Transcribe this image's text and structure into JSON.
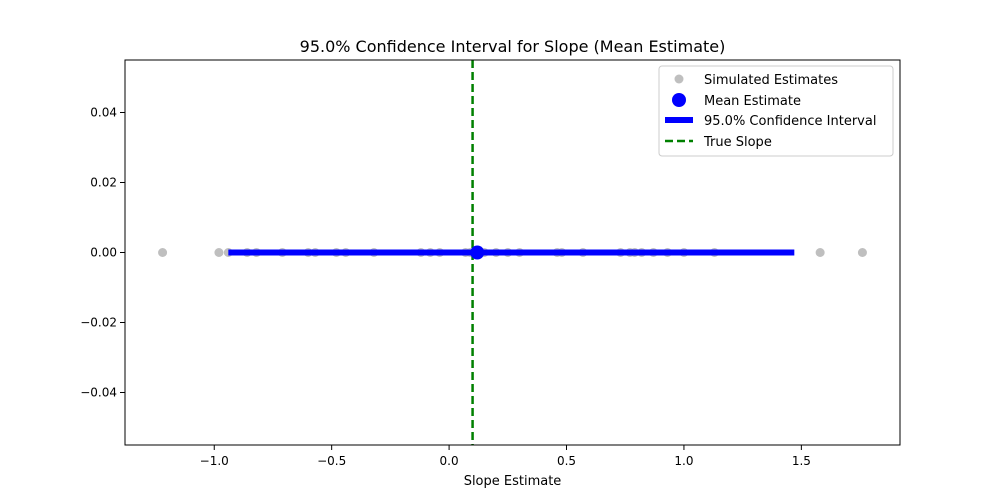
{
  "chart_data": {
    "type": "scatter",
    "title": "95.0% Confidence Interval for Slope (Mean Estimate)",
    "xlabel": "Slope Estimate",
    "ylabel": "",
    "xlim": [
      -1.38,
      1.92
    ],
    "ylim": [
      -0.055,
      0.055
    ],
    "xticks": [
      {
        "value": -1.0,
        "label": "−1.0"
      },
      {
        "value": -0.5,
        "label": "−0.5"
      },
      {
        "value": 0.0,
        "label": "0.0"
      },
      {
        "value": 0.5,
        "label": "0.5"
      },
      {
        "value": 1.0,
        "label": "1.0"
      },
      {
        "value": 1.5,
        "label": "1.5"
      }
    ],
    "yticks": [
      {
        "value": 0.04,
        "label": "0.04"
      },
      {
        "value": 0.02,
        "label": "0.02"
      },
      {
        "value": 0.0,
        "label": "0.00"
      },
      {
        "value": -0.02,
        "label": "−0.02"
      },
      {
        "value": -0.04,
        "label": "−0.04"
      }
    ],
    "grid": false,
    "legend_position": "top-right",
    "series": [
      {
        "name": "Simulated Estimates",
        "kind": "scatter",
        "color": "#aaaaaa",
        "x": [
          -1.22,
          -0.98,
          -0.94,
          -0.86,
          -0.82,
          -0.71,
          -0.6,
          -0.57,
          -0.48,
          -0.44,
          -0.32,
          -0.12,
          -0.08,
          -0.04,
          0.07,
          0.09,
          0.15,
          0.2,
          0.25,
          0.3,
          0.46,
          0.48,
          0.57,
          0.73,
          0.77,
          0.79,
          0.82,
          0.87,
          0.93,
          1.0,
          1.13,
          1.58,
          1.76
        ],
        "y": [
          0,
          0,
          0,
          0,
          0,
          0,
          0,
          0,
          0,
          0,
          0,
          0,
          0,
          0,
          0,
          0,
          0,
          0,
          0,
          0,
          0,
          0,
          0,
          0,
          0,
          0,
          0,
          0,
          0,
          0,
          0,
          0,
          0
        ]
      },
      {
        "name": "Mean Estimate",
        "kind": "point",
        "color": "#0000ff",
        "x": 0.12,
        "y": 0.0
      },
      {
        "name": "95.0% Confidence Interval",
        "kind": "interval",
        "color": "#0000ff",
        "x_low": -0.94,
        "x_high": 1.47,
        "y": 0.0
      },
      {
        "name": "True Slope",
        "kind": "vline",
        "color": "#008000",
        "x": 0.1
      }
    ]
  }
}
